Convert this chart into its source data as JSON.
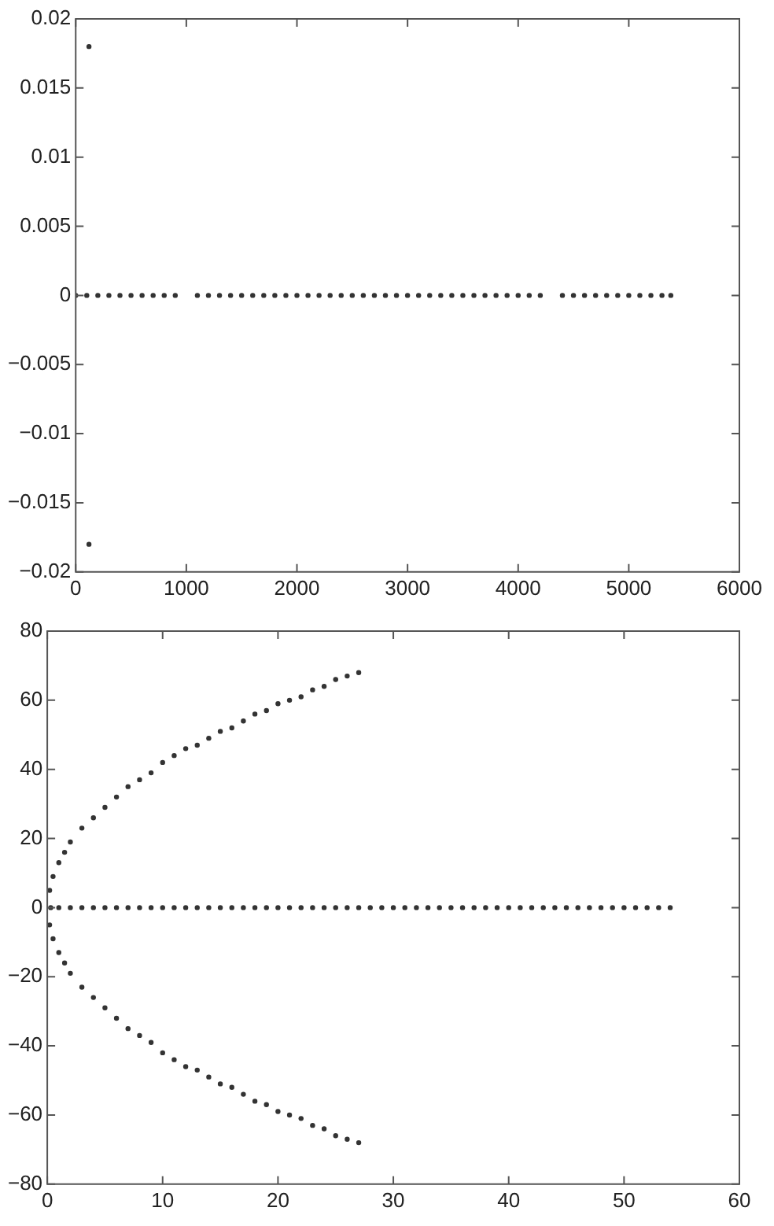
{
  "chart_data": [
    {
      "type": "scatter",
      "xlim": [
        0,
        6000
      ],
      "xticks": [
        0,
        1000,
        2000,
        3000,
        4000,
        5000,
        6000
      ],
      "ylim": [
        -0.02,
        0.02
      ],
      "yticks": [
        -0.02,
        -0.015,
        -0.01,
        -0.005,
        0,
        0.005,
        0.01,
        0.015,
        0.02
      ],
      "grid": false,
      "legend": false,
      "marker": "circle",
      "series": [
        {
          "color": "#333333",
          "x": [
            0,
            100,
            200,
            300,
            400,
            500,
            600,
            700,
            800,
            900,
            1100,
            1200,
            1300,
            1400,
            1500,
            1600,
            1700,
            1800,
            1900,
            2000,
            2100,
            2200,
            2300,
            2400,
            2500,
            2600,
            2700,
            2800,
            2900,
            3000,
            3100,
            3200,
            3300,
            3400,
            3500,
            3600,
            3700,
            3800,
            3900,
            4000,
            4100,
            4200,
            4400,
            4500,
            4600,
            4700,
            4800,
            4900,
            5000,
            5100,
            5200,
            5300,
            5380,
            120,
            120
          ],
          "values": [
            0,
            0,
            0,
            0,
            0,
            0,
            0,
            0,
            0,
            0,
            0,
            0,
            0,
            0,
            0,
            0,
            0,
            0,
            0,
            0,
            0,
            0,
            0,
            0,
            0,
            0,
            0,
            0,
            0,
            0,
            0,
            0,
            0,
            0,
            0,
            0,
            0,
            0,
            0,
            0,
            0,
            0,
            0,
            0,
            0,
            0,
            0,
            0,
            0,
            0,
            0,
            0,
            0,
            0.018,
            -0.018
          ]
        }
      ]
    },
    {
      "type": "scatter",
      "xlim": [
        0,
        60
      ],
      "xticks": [
        0,
        10,
        20,
        30,
        40,
        50,
        60
      ],
      "ylim": [
        -80,
        80
      ],
      "yticks": [
        -80,
        -60,
        -40,
        -20,
        0,
        20,
        40,
        60,
        80
      ],
      "grid": false,
      "legend": false,
      "marker": "circle",
      "series": [
        {
          "color": "#333333",
          "x": [
            0.2,
            0.5,
            1,
            1.5,
            2,
            3,
            4,
            5,
            6,
            7,
            8,
            9,
            10,
            11,
            12,
            13,
            14,
            15,
            16,
            17,
            18,
            19,
            20,
            21,
            22,
            23,
            24,
            25,
            26,
            27
          ],
          "values": [
            5,
            9,
            13,
            16,
            19,
            23,
            26,
            29,
            32,
            35,
            37,
            39,
            42,
            44,
            46,
            47,
            49,
            51,
            52,
            54,
            56,
            57,
            59,
            60,
            61,
            63,
            64,
            66,
            67,
            68
          ]
        },
        {
          "color": "#333333",
          "x": [
            0.2,
            0.5,
            1,
            1.5,
            2,
            3,
            4,
            5,
            6,
            7,
            8,
            9,
            10,
            11,
            12,
            13,
            14,
            15,
            16,
            17,
            18,
            19,
            20,
            21,
            22,
            23,
            24,
            25,
            26,
            27
          ],
          "values": [
            -5,
            -9,
            -13,
            -16,
            -19,
            -23,
            -26,
            -29,
            -32,
            -35,
            -37,
            -39,
            -42,
            -44,
            -46,
            -47,
            -49,
            -51,
            -52,
            -54,
            -56,
            -57,
            -59,
            -60,
            -61,
            -63,
            -64,
            -66,
            -67,
            -68
          ]
        },
        {
          "color": "#333333",
          "x": [
            0.3,
            1,
            2,
            3,
            4,
            5,
            6,
            7,
            8,
            9,
            10,
            11,
            12,
            13,
            14,
            15,
            16,
            17,
            18,
            19,
            20,
            21,
            22,
            23,
            24,
            25,
            26,
            27,
            28,
            29,
            30,
            31,
            32,
            33,
            34,
            35,
            36,
            37,
            38,
            39,
            40,
            41,
            42,
            43,
            44,
            45,
            46,
            47,
            48,
            49,
            50,
            51,
            52,
            53,
            54
          ],
          "values": [
            0,
            0,
            0,
            0,
            0,
            0,
            0,
            0,
            0,
            0,
            0,
            0,
            0,
            0,
            0,
            0,
            0,
            0,
            0,
            0,
            0,
            0,
            0,
            0,
            0,
            0,
            0,
            0,
            0,
            0,
            0,
            0,
            0,
            0,
            0,
            0,
            0,
            0,
            0,
            0,
            0,
            0,
            0,
            0,
            0,
            0,
            0,
            0,
            0,
            0,
            0,
            0,
            0,
            0,
            0
          ]
        }
      ]
    }
  ]
}
